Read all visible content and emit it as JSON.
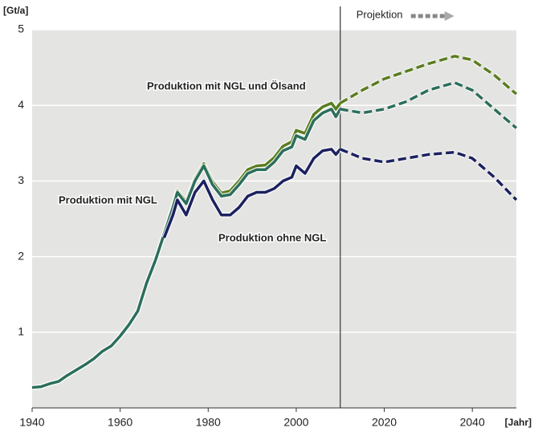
{
  "chart_data": {
    "type": "line",
    "y_axis_label": "[Gt/a]",
    "x_axis_label": "[Jahr]",
    "annotation": "Projektion",
    "projection_start": 2010,
    "xlim": [
      1940,
      2050
    ],
    "xticks": [
      1940,
      1960,
      1980,
      2000,
      2020,
      2040
    ],
    "ylim": [
      0,
      5
    ],
    "yticks": [
      1,
      2,
      3,
      4,
      5
    ],
    "grid": true,
    "x": [
      1940,
      1942,
      1944,
      1946,
      1948,
      1950,
      1952,
      1954,
      1956,
      1958,
      1960,
      1962,
      1964,
      1966,
      1968,
      1970,
      1972,
      1973,
      1975,
      1977,
      1979,
      1981,
      1983,
      1985,
      1987,
      1989,
      1991,
      1993,
      1995,
      1997,
      1999,
      2000,
      2002,
      2004,
      2006,
      2008,
      2009,
      2010,
      2015,
      2020,
      2025,
      2030,
      2036,
      2040,
      2045,
      2050
    ],
    "series": [
      {
        "name": "Produktion mit NGL und Ölsand",
        "color": "#5b7d1f",
        "values": [
          0.27,
          0.28,
          0.32,
          0.35,
          0.43,
          0.5,
          0.57,
          0.65,
          0.75,
          0.82,
          0.95,
          1.1,
          1.28,
          1.65,
          1.95,
          2.3,
          2.67,
          2.87,
          2.73,
          3.03,
          3.23,
          2.99,
          2.84,
          2.87,
          3.0,
          3.15,
          3.2,
          3.21,
          3.31,
          3.46,
          3.52,
          3.67,
          3.63,
          3.88,
          3.98,
          4.03,
          3.95,
          4.03,
          4.2,
          4.35,
          4.45,
          4.55,
          4.65,
          4.6,
          4.4,
          4.15
        ]
      },
      {
        "name": "Produktion mit NGL",
        "color": "#2b6e5c",
        "values": [
          0.27,
          0.28,
          0.32,
          0.35,
          0.43,
          0.5,
          0.57,
          0.65,
          0.75,
          0.82,
          0.95,
          1.1,
          1.28,
          1.65,
          1.95,
          2.3,
          2.65,
          2.85,
          2.7,
          3.0,
          3.2,
          2.95,
          2.8,
          2.82,
          2.95,
          3.1,
          3.15,
          3.15,
          3.25,
          3.4,
          3.45,
          3.6,
          3.55,
          3.8,
          3.9,
          3.95,
          3.85,
          3.95,
          3.9,
          3.95,
          4.05,
          4.2,
          4.3,
          4.2,
          3.95,
          3.7
        ]
      },
      {
        "name": "Produktion ohne NGL",
        "color": "#1c2160",
        "values": [
          null,
          null,
          null,
          null,
          null,
          null,
          null,
          null,
          null,
          null,
          null,
          null,
          null,
          null,
          null,
          2.25,
          2.55,
          2.75,
          2.55,
          2.85,
          3.0,
          2.75,
          2.55,
          2.55,
          2.65,
          2.8,
          2.85,
          2.85,
          2.9,
          3.0,
          3.05,
          3.2,
          3.1,
          3.3,
          3.4,
          3.42,
          3.35,
          3.42,
          3.3,
          3.25,
          3.3,
          3.35,
          3.38,
          3.3,
          3.05,
          2.75
        ]
      }
    ]
  }
}
